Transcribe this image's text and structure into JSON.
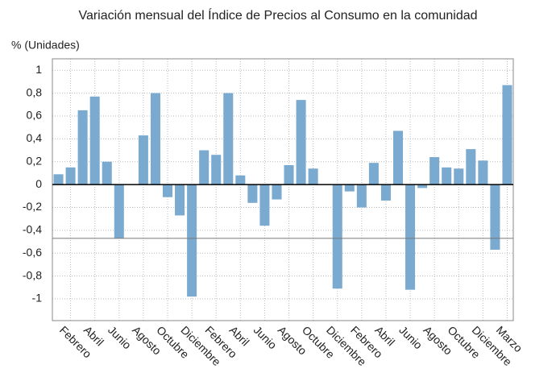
{
  "chart_data": {
    "type": "bar",
    "title": "Variación mensual del Índice de Precios al Consumo en la comunidad",
    "y_label": "% (Unidades)",
    "categories": [
      null,
      "Febrero",
      null,
      "Abril",
      null,
      "Junio",
      null,
      "Agosto",
      null,
      "Octubre",
      null,
      "Diciembre",
      null,
      "Febrero",
      null,
      "Abril",
      null,
      "Junio",
      null,
      "Agosto",
      null,
      "Octubre",
      null,
      "Diciembre",
      null,
      "Febrero",
      null,
      "Abril",
      null,
      "Junio",
      null,
      "Agosto",
      null,
      "Octubre",
      null,
      "Diciembre",
      null,
      "Marzo"
    ],
    "values": [
      0.09,
      0.15,
      0.65,
      0.77,
      0.2,
      -0.47,
      0,
      0.43,
      0.8,
      -0.11,
      -0.27,
      -0.98,
      0.3,
      0.26,
      0.8,
      0.08,
      -0.16,
      -0.36,
      -0.13,
      0.17,
      0.74,
      0.14,
      0,
      -0.91,
      -0.06,
      -0.2,
      0.19,
      -0.14,
      0.47,
      -0.92,
      -0.03,
      0.24,
      0.15,
      0.14,
      0.31,
      0.21,
      -0.57,
      0.87
    ],
    "color": "#7aaad0",
    "reference_line": -0.47,
    "ylim": [
      -1.19,
      1.1
    ],
    "yticks": [
      -1,
      {
        "value": -0.8,
        "label": "-0,8"
      },
      {
        "value": -0.6,
        "label": "-0,6"
      },
      {
        "value": -0.4,
        "label": "-0,4"
      },
      {
        "value": -0.2,
        "label": "-0,2"
      },
      0,
      {
        "value": 0.2,
        "label": "0,2"
      },
      {
        "value": 0.4,
        "label": "0,4"
      },
      {
        "value": 0.6,
        "label": "0,6"
      },
      {
        "value": 0.8,
        "label": "0,8"
      },
      1
    ],
    "grid": true
  }
}
